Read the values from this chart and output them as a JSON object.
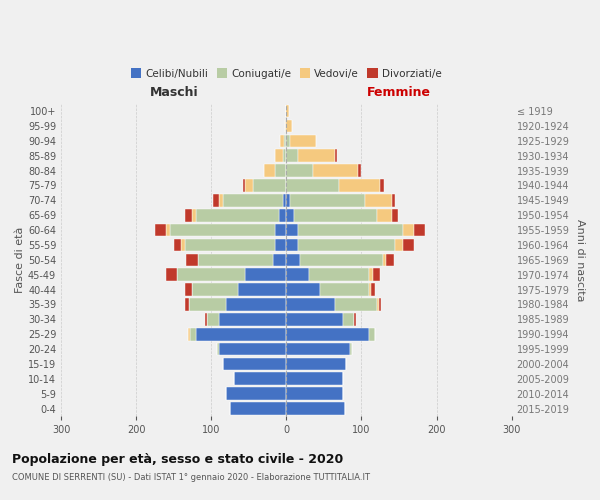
{
  "age_groups": [
    "0-4",
    "5-9",
    "10-14",
    "15-19",
    "20-24",
    "25-29",
    "30-34",
    "35-39",
    "40-44",
    "45-49",
    "50-54",
    "55-59",
    "60-64",
    "65-69",
    "70-74",
    "75-79",
    "80-84",
    "85-89",
    "90-94",
    "95-99",
    "100+"
  ],
  "birth_years": [
    "2015-2019",
    "2010-2014",
    "2005-2009",
    "2000-2004",
    "1995-1999",
    "1990-1994",
    "1985-1989",
    "1980-1984",
    "1975-1979",
    "1970-1974",
    "1965-1969",
    "1960-1964",
    "1955-1959",
    "1950-1954",
    "1945-1949",
    "1940-1944",
    "1935-1939",
    "1930-1934",
    "1925-1929",
    "1920-1924",
    "≤ 1919"
  ],
  "maschi": {
    "celibi": [
      75,
      80,
      70,
      85,
      90,
      120,
      90,
      80,
      65,
      55,
      18,
      15,
      15,
      10,
      5,
      0,
      0,
      0,
      0,
      0,
      0
    ],
    "coniugati": [
      0,
      0,
      0,
      0,
      3,
      8,
      15,
      50,
      60,
      90,
      100,
      120,
      140,
      110,
      80,
      45,
      15,
      5,
      3,
      0,
      0
    ],
    "vedovi": [
      0,
      0,
      0,
      0,
      0,
      3,
      0,
      0,
      0,
      0,
      0,
      5,
      5,
      5,
      5,
      10,
      15,
      10,
      5,
      2,
      0
    ],
    "divorziati": [
      0,
      0,
      0,
      0,
      0,
      0,
      3,
      5,
      10,
      15,
      15,
      10,
      15,
      10,
      8,
      3,
      0,
      0,
      0,
      0,
      0
    ]
  },
  "femmine": {
    "nubili": [
      78,
      75,
      75,
      80,
      85,
      110,
      75,
      65,
      45,
      30,
      18,
      15,
      15,
      10,
      5,
      0,
      0,
      0,
      0,
      0,
      0
    ],
    "coniugate": [
      0,
      0,
      0,
      0,
      3,
      8,
      15,
      55,
      65,
      80,
      110,
      130,
      140,
      110,
      100,
      70,
      35,
      15,
      5,
      0,
      0
    ],
    "vedove": [
      0,
      0,
      0,
      0,
      0,
      0,
      0,
      3,
      3,
      5,
      5,
      10,
      15,
      20,
      35,
      55,
      60,
      50,
      35,
      8,
      3
    ],
    "divorziate": [
      0,
      0,
      0,
      0,
      0,
      0,
      3,
      3,
      5,
      10,
      10,
      15,
      15,
      8,
      5,
      5,
      5,
      3,
      0,
      0,
      0
    ]
  },
  "colors": {
    "celibi_nubili": "#4472c4",
    "coniugati": "#b8cca4",
    "vedovi": "#f5c97f",
    "divorziati": "#c0392b"
  },
  "xlim": 300,
  "title": "Popolazione per età, sesso e stato civile - 2020",
  "subtitle": "COMUNE DI SERRENTI (SU) - Dati ISTAT 1° gennaio 2020 - Elaborazione TUTTITALIA.IT",
  "ylabel_left": "Fasce di età",
  "ylabel_right": "Anni di nascita",
  "xlabel_maschi": "Maschi",
  "xlabel_femmine": "Femmine",
  "bg_color": "#f0f0f0",
  "grid_color": "#cccccc",
  "legend_labels": [
    "Celibi/Nubili",
    "Coniugati/e",
    "Vedovi/e",
    "Divorziati/e"
  ]
}
